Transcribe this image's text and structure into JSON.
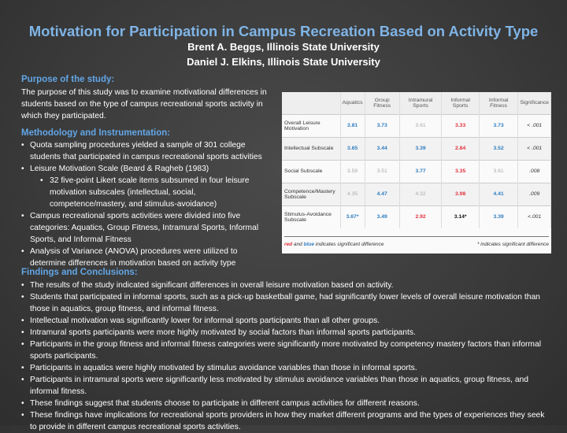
{
  "title": "Motivation for Participation in Campus Recreation Based on Activity Type",
  "authors": [
    "Brent A. Beggs, Illinois State University",
    "Daniel J. Elkins, Illinois State University"
  ],
  "purpose": {
    "heading": "Purpose of the study:",
    "text": "The purpose of this study was to examine motivational differences in students based on the type of campus recreational sports activity in which they participated."
  },
  "methodology": {
    "heading": "Methodology and Instrumentation:",
    "bullets": [
      {
        "text": "Quota sampling procedures yielded a sample of 301 college students that participated in campus recreational sports activities",
        "level": 1
      },
      {
        "text": "Leisure Motivation Scale (Beard & Ragheb (1983)",
        "level": 1
      },
      {
        "text": "32 five-point Likert scale items subsumed in four leisure motivation subscales (intellectual, social, competence/mastery, and stimulus-avoidance)",
        "level": 2
      },
      {
        "text": "Campus recreational sports activities were divided into five categories:  Aquatics, Group Fitness, Intramural Sports, Informal Sports, and Informal Fitness",
        "level": 1
      },
      {
        "text": "Analysis of Variance (ANOVA) procedures were utilized to determine differences in motivation based on activity type",
        "level": 1
      }
    ]
  },
  "table": {
    "headers": [
      "",
      "Aquatics",
      "Group Fitness",
      "Intramural Sports",
      "Informal Sports",
      "Informal Fitness",
      "Significance"
    ],
    "rows": [
      {
        "label": "Overall Leisure Motivation",
        "cells": [
          {
            "v": "3.81",
            "c": "b"
          },
          {
            "v": "3.73",
            "c": "b"
          },
          {
            "v": "3.61",
            "c": "g"
          },
          {
            "v": "3.33",
            "c": "r"
          },
          {
            "v": "3.73",
            "c": "b"
          }
        ],
        "sig": "< .001"
      },
      {
        "label": "Intellectual Subscale",
        "cells": [
          {
            "v": "3.65",
            "c": "b"
          },
          {
            "v": "3.44",
            "c": "b"
          },
          {
            "v": "3.39",
            "c": "b"
          },
          {
            "v": "2.84",
            "c": "r"
          },
          {
            "v": "3.52",
            "c": "b"
          }
        ],
        "sig": "< .001"
      },
      {
        "label": "Social Subscale",
        "cells": [
          {
            "v": "3.58",
            "c": "g"
          },
          {
            "v": "3.51",
            "c": "g"
          },
          {
            "v": "3.77",
            "c": "b"
          },
          {
            "v": "3.35",
            "c": "r"
          },
          {
            "v": "3.61",
            "c": "g"
          }
        ],
        "sig": ".008"
      },
      {
        "label": "Competence/Mastery Subscale",
        "cells": [
          {
            "v": "4.35",
            "c": "g"
          },
          {
            "v": "4.47",
            "c": "b"
          },
          {
            "v": "4.32",
            "c": "g"
          },
          {
            "v": "3.98",
            "c": "r"
          },
          {
            "v": "4.41",
            "c": "b"
          }
        ],
        "sig": ".009"
      },
      {
        "label": "Stimulus-Avoidance Subscale",
        "cells": [
          {
            "v": "3.67*",
            "c": "b"
          },
          {
            "v": "3.49",
            "c": "b"
          },
          {
            "v": "2.92",
            "c": "r"
          },
          {
            "v": "3.14*",
            "c": "k"
          },
          {
            "v": "3.39",
            "c": "b"
          }
        ],
        "sig": "<.001"
      }
    ],
    "footnote_red": "red",
    "footnote_and": " and ",
    "footnote_blue": "blue",
    "footnote_rest": " indicates significant difference",
    "footnote_star": "* indicates significant difference",
    "colors": {
      "b": "#2e7dc0",
      "r": "#e0323c",
      "g": "#aaaaaa",
      "k": "#111111"
    }
  },
  "findings": {
    "heading": "Findings and Conclusions:",
    "bullets": [
      "The results of the study indicated significant differences in overall leisure motivation based on activity.",
      "Students that participated in informal sports, such as a pick-up basketball game, had significantly lower levels of overall leisure motivation than those in aquatics, group fitness, and informal fitness.",
      "Intellectual motivation was significantly lower for informal sports participants than all other groups.",
      "Intramural sports participants were more highly motivated by social factors than informal sports participants.",
      "Participants in the group fitness and informal fitness categories were significantly more motivated by competency mastery factors than informal sports participants.",
      "Participants in aquatics were highly motivated by stimulus avoidance variables than those in informal sports.",
      "Participants in intramural sports were significantly less motivated by stimulus avoidance variables than those in aquatics, group fitness, and informal fitness.",
      "These findings suggest that students choose to participate in different campus activities for different reasons.",
      "These findings have implications for recreational sports providers in how they market different programs and the types of experiences they seek to provide in different campus recreational sports activities."
    ]
  }
}
